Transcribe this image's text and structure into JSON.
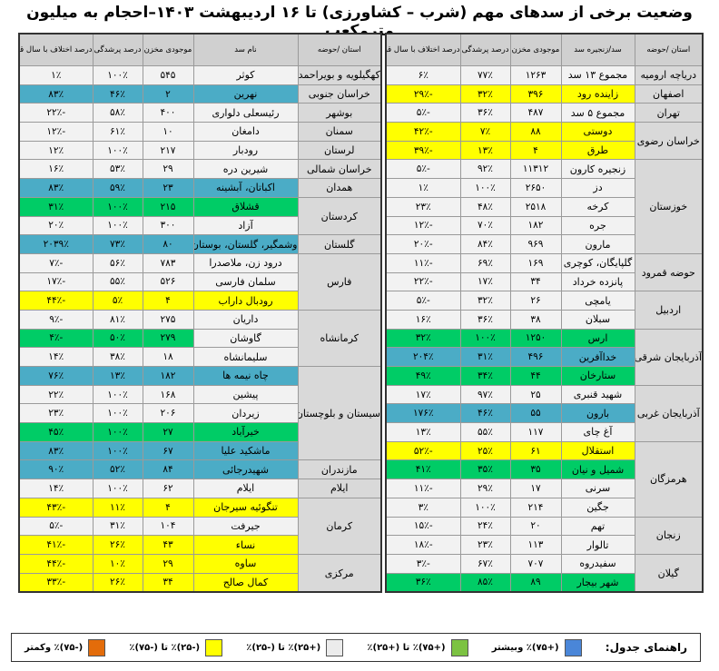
{
  "title": "وضعیت برخی از سدهای مهم (شرب – کشاورزی) تا ۱۶ اردیبهشت ۱۴۰۳–احجام به میلیون مترمکعب",
  "colors": {
    "yellow": "#ffff00",
    "blue": "#4bacc6",
    "green": "#00cc66",
    "grey": "#f2f2f2",
    "province_bg": "#d9d9d9",
    "header_bg": "#d0d0d0"
  },
  "right_table": {
    "headers": [
      "استان /حوضه",
      "سد/زنجیره سد",
      "موجودی مخزن",
      "درصد پرشدگی",
      "درصد اختلاف با سال قبل"
    ],
    "rows": [
      {
        "province": "دریاچه ارومیه",
        "rowspan": 1,
        "dam": "مجموع ۱۳ سد",
        "storage": "۱۲۶۳",
        "fill": "۷۷٪",
        "diff": "۶٪",
        "color": "grey"
      },
      {
        "province": "اصفهان",
        "rowspan": 1,
        "dam": "زاینده رود",
        "storage": "۳۹۶",
        "fill": "۳۲٪",
        "diff": "-۲۹٪",
        "color": "yellow"
      },
      {
        "province": "تهران",
        "rowspan": 1,
        "dam": "مجموع ۵ سد",
        "storage": "۴۸۷",
        "fill": "۳۶٪",
        "diff": "-۵٪",
        "color": "grey"
      },
      {
        "province": "خراسان رضوی",
        "rowspan": 2,
        "dam": "دوستی",
        "storage": "۸۸",
        "fill": "۷٪",
        "diff": "-۴۲٪",
        "color": "yellow"
      },
      {
        "province": null,
        "dam": "طرق",
        "storage": "۴",
        "fill": "۱۳٪",
        "diff": "-۳۹٪",
        "color": "yellow"
      },
      {
        "province": "خوزستان",
        "rowspan": 5,
        "dam": "زنجیره کارون",
        "storage": "۱۱۳۱۲",
        "fill": "۹۲٪",
        "diff": "-۵٪",
        "color": "grey"
      },
      {
        "province": null,
        "dam": "دز",
        "storage": "۲۶۵۰",
        "fill": "۱۰۰٪",
        "diff": "۱٪",
        "color": "grey"
      },
      {
        "province": null,
        "dam": "کرخه",
        "storage": "۲۵۱۸",
        "fill": "۴۸٪",
        "diff": "۲۳٪",
        "color": "grey"
      },
      {
        "province": null,
        "dam": "جره",
        "storage": "۱۸۲",
        "fill": "۷۰٪",
        "diff": "-۱۲٪",
        "color": "grey"
      },
      {
        "province": null,
        "dam": "مارون",
        "storage": "۹۶۹",
        "fill": "۸۴٪",
        "diff": "-۲۰٪",
        "color": "grey"
      },
      {
        "province": "حوضه قمرود",
        "rowspan": 2,
        "dam": "گلپایگان، کوچری",
        "storage": "۱۶۹",
        "fill": "۶۹٪",
        "diff": "-۱۱٪",
        "color": "grey"
      },
      {
        "province": null,
        "dam": "پانزده خرداد",
        "storage": "۳۴",
        "fill": "۱۷٪",
        "diff": "-۲۲٪",
        "color": "grey"
      },
      {
        "province": "اردبیل",
        "rowspan": 2,
        "dam": "یامچی",
        "storage": "۲۶",
        "fill": "۳۲٪",
        "diff": "-۵٪",
        "color": "grey"
      },
      {
        "province": null,
        "dam": "سبلان",
        "storage": "۳۸",
        "fill": "۳۶٪",
        "diff": "۱۶٪",
        "color": "grey"
      },
      {
        "province": "آذربایجان شرقی",
        "rowspan": 3,
        "dam": "ارس",
        "storage": "۱۲۵۰",
        "fill": "۱۰۰٪",
        "diff": "۳۲٪",
        "color": "green"
      },
      {
        "province": null,
        "dam": "خداآفرین",
        "storage": "۴۹۶",
        "fill": "۳۱٪",
        "diff": "۲۰۴٪",
        "color": "blue"
      },
      {
        "province": null,
        "dam": "ستارخان",
        "storage": "۴۴",
        "fill": "۳۴٪",
        "diff": "۴۹٪",
        "color": "green"
      },
      {
        "province": "آذربایجان غربی",
        "rowspan": 3,
        "dam": "شهید قنبری",
        "storage": "۲۵",
        "fill": "۹۷٪",
        "diff": "۱۷٪",
        "color": "grey"
      },
      {
        "province": null,
        "dam": "بارون",
        "storage": "۵۵",
        "fill": "۴۶٪",
        "diff": "۱۷۶٪",
        "color": "blue"
      },
      {
        "province": null,
        "dam": "آغ چای",
        "storage": "۱۱۷",
        "fill": "۵۵٪",
        "diff": "۱۳٪",
        "color": "grey"
      },
      {
        "province": "هرمزگان",
        "rowspan": 4,
        "dam": "استقلال",
        "storage": "۶۱",
        "fill": "۲۵٪",
        "diff": "-۵۲٪",
        "color": "yellow"
      },
      {
        "province": null,
        "dam": "شمیل و نیان",
        "storage": "۳۵",
        "fill": "۳۵٪",
        "diff": "۴۱٪",
        "color": "green"
      },
      {
        "province": null,
        "dam": "سرنی",
        "storage": "۱۷",
        "fill": "۲۹٪",
        "diff": "-۱۱٪",
        "color": "grey"
      },
      {
        "province": null,
        "dam": "جگین",
        "storage": "۲۱۴",
        "fill": "۱۰۰٪",
        "diff": "۳٪",
        "color": "grey"
      },
      {
        "province": "زنجان",
        "rowspan": 2,
        "dam": "تهم",
        "storage": "۲۰",
        "fill": "۲۴٪",
        "diff": "-۱۵٪",
        "color": "grey"
      },
      {
        "province": null,
        "dam": "تالوار",
        "storage": "۱۱۳",
        "fill": "۲۳٪",
        "diff": "-۱۸٪",
        "color": "grey"
      },
      {
        "province": "گیلان",
        "rowspan": 2,
        "dam": "سفیدروه",
        "storage": "۷۰۷",
        "fill": "۶۷٪",
        "diff": "-۳٪",
        "color": "grey"
      },
      {
        "province": null,
        "dam": "شهر بیجار",
        "storage": "۸۹",
        "fill": "۸۵٪",
        "diff": "۳۶٪",
        "color": "green"
      }
    ]
  },
  "left_table": {
    "headers": [
      "استان /حوضه",
      "نام سد",
      "موجودی مخزن",
      "درصد پرشدگی",
      "درصد اختلاف با سال قبل"
    ],
    "rows": [
      {
        "province": "کهگیلویه و بویراحمد",
        "rowspan": 1,
        "dam": "کوثر",
        "storage": "۵۴۵",
        "fill": "۱۰۰٪",
        "diff": "۱٪",
        "color": "grey"
      },
      {
        "province": "خراسان جنوبی",
        "rowspan": 1,
        "dam": "نهرین",
        "storage": "۲",
        "fill": "۴۶٪",
        "diff": "۸۳٪",
        "color": "blue"
      },
      {
        "province": "بوشهر",
        "rowspan": 1,
        "dam": "رئیسعلی دلواری",
        "storage": "۴۰۰",
        "fill": "۵۸٪",
        "diff": "-۲۲٪",
        "color": "grey"
      },
      {
        "province": "سمنان",
        "rowspan": 1,
        "dam": "دامغان",
        "storage": "۱۰",
        "fill": "۶۱٪",
        "diff": "-۱۲٪",
        "color": "grey"
      },
      {
        "province": "لرستان",
        "rowspan": 1,
        "dam": "رودبار",
        "storage": "۲۱۷",
        "fill": "۱۰۰٪",
        "diff": "۱۲٪",
        "color": "grey"
      },
      {
        "province": "خراسان شمالی",
        "rowspan": 1,
        "dam": "شیرین دره",
        "storage": "۲۹",
        "fill": "۵۳٪",
        "diff": "۱۶٪",
        "color": "grey"
      },
      {
        "province": "همدان",
        "rowspan": 1,
        "dam": "اکباتان، آبشینه",
        "storage": "۲۳",
        "fill": "۵۹٪",
        "diff": "۸۳٪",
        "color": "blue"
      },
      {
        "province": "کردستان",
        "rowspan": 2,
        "dam": "قشلاق",
        "storage": "۲۱۵",
        "fill": "۱۰۰٪",
        "diff": "۳۱٪",
        "color": "green"
      },
      {
        "province": null,
        "dam": "آزاد",
        "storage": "۳۰۰",
        "fill": "۱۰۰٪",
        "diff": "۲۰٪",
        "color": "grey"
      },
      {
        "province": "گلستان",
        "rowspan": 1,
        "dam": "وشمگیر، گلستان، بوستان",
        "storage": "۸۰",
        "fill": "۷۳٪",
        "diff": "۲۰۳۹٪",
        "color": "blue"
      },
      {
        "province": "فارس",
        "rowspan": 3,
        "dam": "درود زن، ملاصدرا",
        "storage": "۷۸۳",
        "fill": "۵۶٪",
        "diff": "-۷٪",
        "color": "grey"
      },
      {
        "province": null,
        "dam": "سلمان فارسی",
        "storage": "۵۲۶",
        "fill": "۵۵٪",
        "diff": "-۱۷٪",
        "color": "grey"
      },
      {
        "province": null,
        "dam": "رودبال داراب",
        "storage": "۴",
        "fill": "۵٪",
        "diff": "-۴۴٪",
        "color": "yellow"
      },
      {
        "province": "کرمانشاه",
        "rowspan": 3,
        "dam": "داریان",
        "storage": "۲۷۵",
        "fill": "۸۱٪",
        "diff": "-۹٪",
        "color": "grey"
      },
      {
        "province": null,
        "dam": "گاوشان",
        "storage": "۲۷۹",
        "fill": "۵۰٪",
        "diff": "-۴٪",
        "color": "green-partial"
      },
      {
        "province": null,
        "dam": "سلیمانشاه",
        "storage": "۱۸",
        "fill": "۳۸٪",
        "diff": "۱۴٪",
        "color": "grey"
      },
      {
        "province": "سیستان و بلوچستان",
        "rowspan": 5,
        "dam": "چاه نیمه ها",
        "storage": "۱۸۲",
        "fill": "۱۳٪",
        "diff": "۷۶٪",
        "color": "blue"
      },
      {
        "province": null,
        "dam": "پیشین",
        "storage": "۱۶۸",
        "fill": "۱۰۰٪",
        "diff": "۲۲٪",
        "color": "grey"
      },
      {
        "province": null,
        "dam": "زیردان",
        "storage": "۲۰۶",
        "fill": "۱۰۰٪",
        "diff": "۲۳٪",
        "color": "grey"
      },
      {
        "province": null,
        "dam": "خیرآباد",
        "storage": "۲۷",
        "fill": "۱۰۰٪",
        "diff": "۴۵٪",
        "color": "green"
      },
      {
        "province": null,
        "dam": "ماشکید علیا",
        "storage": "۶۷",
        "fill": "۱۰۰٪",
        "diff": "۸۳٪",
        "color": "blue"
      },
      {
        "province": "مازندران",
        "rowspan": 1,
        "dam": "شهیدرجائی",
        "storage": "۸۴",
        "fill": "۵۲٪",
        "diff": "۹۰٪",
        "color": "blue"
      },
      {
        "province": "ایلام",
        "rowspan": 1,
        "dam": "ایلام",
        "storage": "۶۲",
        "fill": "۱۰۰٪",
        "diff": "۱۴٪",
        "color": "grey"
      },
      {
        "province": "کرمان",
        "rowspan": 3,
        "dam": "تنگوئیه سیرجان",
        "storage": "۴",
        "fill": "۱۱٪",
        "diff": "-۴۳٪",
        "color": "yellow"
      },
      {
        "province": null,
        "dam": "جیرفت",
        "storage": "۱۰۴",
        "fill": "۳۱٪",
        "diff": "-۵٪",
        "color": "grey"
      },
      {
        "province": null,
        "dam": "نساء",
        "storage": "۴۳",
        "fill": "۲۶٪",
        "diff": "-۴۱٪",
        "color": "yellow"
      },
      {
        "province": "مرکزی",
        "rowspan": 2,
        "dam": "ساوه",
        "storage": "۲۹",
        "fill": "۱۰٪",
        "diff": "-۴۴٪",
        "color": "yellow"
      },
      {
        "province": null,
        "dam": "کمال صالح",
        "storage": "۳۴",
        "fill": "۲۶٪",
        "diff": "-۳۳٪",
        "color": "yellow"
      }
    ]
  },
  "legend": {
    "title": "راهنمای جدول:",
    "items": [
      {
        "label": "(+۷۵)٪ وبیشتر",
        "color": "#4a86d8"
      },
      {
        "label": "(+۷۵)٪ تا (+۲۵)٪",
        "color": "#7cc242"
      },
      {
        "label": "(+۲۵)٪ تا (-۲۵)٪",
        "color": "#ececec"
      },
      {
        "label": "(-۲۵)٪ تا (-۷۵)٪",
        "color": "#ffff00"
      },
      {
        "label": "(-۷۵)٪ وکمتر",
        "color": "#e36c0a"
      }
    ]
  }
}
